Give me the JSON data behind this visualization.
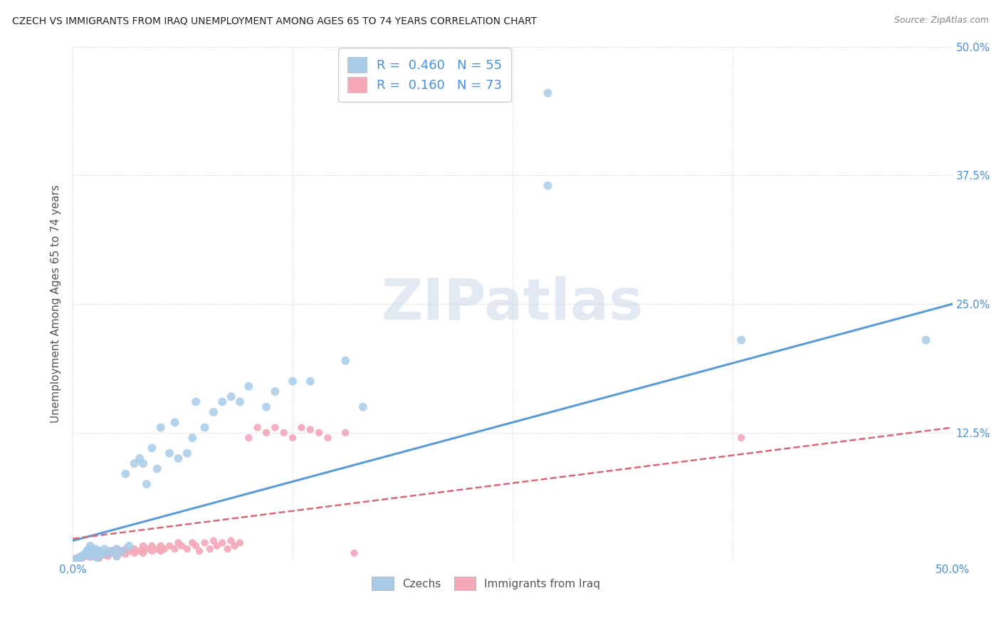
{
  "title": "CZECH VS IMMIGRANTS FROM IRAQ UNEMPLOYMENT AMONG AGES 65 TO 74 YEARS CORRELATION CHART",
  "source": "Source: ZipAtlas.com",
  "ylabel": "Unemployment Among Ages 65 to 74 years",
  "xlim": [
    0.0,
    0.5
  ],
  "ylim": [
    0.0,
    0.5
  ],
  "background_color": "#ffffff",
  "watermark_text": "ZIPatlas",
  "legend_label1": "Czechs",
  "legend_label2": "Immigrants from Iraq",
  "r1": 0.46,
  "n1": 55,
  "r2": 0.16,
  "n2": 73,
  "color_blue": "#a8cce8",
  "color_pink": "#f4a8b8",
  "color_blue_dark": "#5b9bd5",
  "color_pink_dark": "#d4687a",
  "color_text_blue": "#4a90d9",
  "color_axis_label": "#555555",
  "color_grid": "#cccccc",
  "czechs_x": [
    0.002,
    0.003,
    0.005,
    0.005,
    0.006,
    0.007,
    0.008,
    0.008,
    0.009,
    0.01,
    0.01,
    0.011,
    0.012,
    0.013,
    0.014,
    0.015,
    0.015,
    0.016,
    0.018,
    0.02,
    0.022,
    0.025,
    0.025,
    0.028,
    0.03,
    0.032,
    0.035,
    0.038,
    0.04,
    0.042,
    0.045,
    0.048,
    0.05,
    0.055,
    0.058,
    0.06,
    0.065,
    0.068,
    0.07,
    0.075,
    0.08,
    0.085,
    0.09,
    0.095,
    0.1,
    0.11,
    0.115,
    0.125,
    0.135,
    0.155,
    0.165,
    0.27,
    0.27,
    0.38,
    0.485
  ],
  "czechs_y": [
    0.002,
    0.003,
    0.004,
    0.005,
    0.006,
    0.007,
    0.008,
    0.01,
    0.012,
    0.005,
    0.015,
    0.008,
    0.01,
    0.012,
    0.003,
    0.008,
    0.01,
    0.006,
    0.012,
    0.008,
    0.01,
    0.005,
    0.012,
    0.01,
    0.085,
    0.015,
    0.095,
    0.1,
    0.095,
    0.075,
    0.11,
    0.09,
    0.13,
    0.105,
    0.135,
    0.1,
    0.105,
    0.12,
    0.155,
    0.13,
    0.145,
    0.155,
    0.16,
    0.155,
    0.17,
    0.15,
    0.165,
    0.175,
    0.175,
    0.195,
    0.15,
    0.455,
    0.365,
    0.215,
    0.215
  ],
  "iraq_x": [
    0.001,
    0.002,
    0.003,
    0.004,
    0.005,
    0.005,
    0.006,
    0.007,
    0.008,
    0.009,
    0.01,
    0.01,
    0.011,
    0.012,
    0.013,
    0.014,
    0.015,
    0.015,
    0.016,
    0.018,
    0.02,
    0.02,
    0.022,
    0.023,
    0.025,
    0.025,
    0.027,
    0.028,
    0.03,
    0.03,
    0.032,
    0.035,
    0.035,
    0.038,
    0.04,
    0.04,
    0.042,
    0.045,
    0.045,
    0.048,
    0.05,
    0.05,
    0.052,
    0.055,
    0.058,
    0.06,
    0.062,
    0.065,
    0.068,
    0.07,
    0.072,
    0.075,
    0.078,
    0.08,
    0.082,
    0.085,
    0.088,
    0.09,
    0.092,
    0.095,
    0.1,
    0.105,
    0.11,
    0.115,
    0.12,
    0.125,
    0.13,
    0.135,
    0.14,
    0.145,
    0.155,
    0.16,
    0.38
  ],
  "iraq_y": [
    0.002,
    0.003,
    0.004,
    0.002,
    0.005,
    0.003,
    0.004,
    0.006,
    0.005,
    0.007,
    0.008,
    0.004,
    0.006,
    0.008,
    0.005,
    0.007,
    0.003,
    0.01,
    0.008,
    0.006,
    0.01,
    0.005,
    0.008,
    0.01,
    0.005,
    0.012,
    0.008,
    0.01,
    0.012,
    0.007,
    0.01,
    0.008,
    0.012,
    0.01,
    0.015,
    0.008,
    0.012,
    0.01,
    0.015,
    0.012,
    0.015,
    0.01,
    0.012,
    0.015,
    0.012,
    0.018,
    0.015,
    0.012,
    0.018,
    0.015,
    0.01,
    0.018,
    0.012,
    0.02,
    0.015,
    0.018,
    0.012,
    0.02,
    0.015,
    0.018,
    0.12,
    0.13,
    0.125,
    0.13,
    0.125,
    0.12,
    0.13,
    0.128,
    0.125,
    0.12,
    0.125,
    0.008,
    0.12
  ]
}
